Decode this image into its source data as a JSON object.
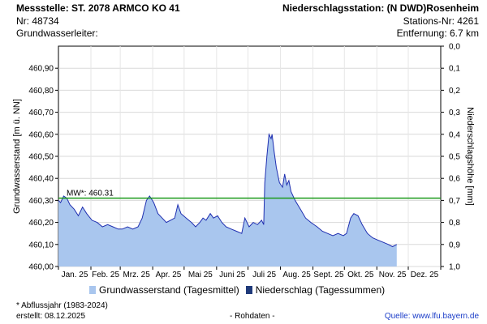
{
  "header": {
    "station_label": "Messstelle: ST. 2078 ARMCO KO 41",
    "nr": "Nr: 48734",
    "aquifer": "Grundwasserleiter:",
    "precip_station": "Niederschlagsstation: (N DWD)Rosenheim",
    "precip_nr": "Stations-Nr: 4261",
    "distance": "Entfernung: 6.7 km"
  },
  "legend": {
    "gw_label": "Grundwasserstand (Tagesmittel)",
    "precip_label": "Niederschlag (Tagessummen)"
  },
  "footer": {
    "abfluss": "* Abflussjahr (1983-2024)",
    "created": "erstellt:  08.12.2025",
    "rohdaten": "- Rohdaten -",
    "source": "Quelle:  www.lfu.bayern.de"
  },
  "colors": {
    "area_fill": "#a9c6ee",
    "line": "#1f2fb0",
    "mean_line": "#1a9a1a",
    "precip": "#1f3a7a",
    "link": "#1a3cc8"
  },
  "chart_data": {
    "type": "area",
    "xlabel": "",
    "ylabel": "Grundwasserstand [m ü. NN]",
    "y2label": "Niederschlagshöhe [mm]",
    "ylim": [
      460.0,
      461.0
    ],
    "y2lim": [
      0.0,
      1.0
    ],
    "y_ticks": [
      "460,00",
      "460,10",
      "460,20",
      "460,30",
      "460,40",
      "460,50",
      "460,60",
      "460,70",
      "460,80",
      "460,90"
    ],
    "y2_ticks": [
      "0,0",
      "0,1",
      "0,2",
      "0,3",
      "0,4",
      "0,5",
      "0,6",
      "0,7",
      "0,8",
      "0,9",
      "1,0"
    ],
    "x_ticks": [
      "Jan. 25",
      "Feb. 25",
      "Mrz. 25",
      "Apr. 25",
      "Mai 25",
      "Juni 25",
      "Juli 25",
      "Aug. 25",
      "Sept. 25",
      "Okt. 25",
      "Nov. 25",
      "Dez. 25"
    ],
    "x_range": [
      "2025-01-01",
      "2026-01-01"
    ],
    "mean_label": "MW*: 460.31",
    "mean_value": 460.31,
    "grid": true,
    "series": [
      {
        "name": "Grundwasserstand (Tagesmittel)",
        "points": [
          [
            "2025-01-01",
            460.3
          ],
          [
            "2025-01-03",
            460.29
          ],
          [
            "2025-01-06",
            460.32
          ],
          [
            "2025-01-09",
            460.31
          ],
          [
            "2025-01-12",
            460.28
          ],
          [
            "2025-01-16",
            460.26
          ],
          [
            "2025-01-20",
            460.23
          ],
          [
            "2025-01-24",
            460.27
          ],
          [
            "2025-01-28",
            460.24
          ],
          [
            "2025-02-02",
            460.21
          ],
          [
            "2025-02-07",
            460.2
          ],
          [
            "2025-02-12",
            460.18
          ],
          [
            "2025-02-17",
            460.19
          ],
          [
            "2025-02-22",
            460.18
          ],
          [
            "2025-02-27",
            460.17
          ],
          [
            "2025-03-03",
            460.17
          ],
          [
            "2025-03-08",
            460.18
          ],
          [
            "2025-03-13",
            460.17
          ],
          [
            "2025-03-18",
            460.18
          ],
          [
            "2025-03-22",
            460.22
          ],
          [
            "2025-03-26",
            460.3
          ],
          [
            "2025-03-29",
            460.32
          ],
          [
            "2025-04-02",
            460.29
          ],
          [
            "2025-04-06",
            460.24
          ],
          [
            "2025-04-10",
            460.22
          ],
          [
            "2025-04-14",
            460.2
          ],
          [
            "2025-04-18",
            460.21
          ],
          [
            "2025-04-22",
            460.22
          ],
          [
            "2025-04-25",
            460.28
          ],
          [
            "2025-04-28",
            460.24
          ],
          [
            "2025-05-03",
            460.22
          ],
          [
            "2025-05-08",
            460.2
          ],
          [
            "2025-05-12",
            460.18
          ],
          [
            "2025-05-16",
            460.2
          ],
          [
            "2025-05-19",
            460.22
          ],
          [
            "2025-05-22",
            460.21
          ],
          [
            "2025-05-26",
            460.24
          ],
          [
            "2025-05-29",
            460.22
          ],
          [
            "2025-06-02",
            460.23
          ],
          [
            "2025-06-06",
            460.2
          ],
          [
            "2025-06-10",
            460.18
          ],
          [
            "2025-06-15",
            460.17
          ],
          [
            "2025-06-20",
            460.16
          ],
          [
            "2025-06-25",
            460.15
          ],
          [
            "2025-06-28",
            460.22
          ],
          [
            "2025-07-02",
            460.18
          ],
          [
            "2025-07-06",
            460.2
          ],
          [
            "2025-07-10",
            460.19
          ],
          [
            "2025-07-14",
            460.21
          ],
          [
            "2025-07-16",
            460.19
          ],
          [
            "2025-07-17",
            460.38
          ],
          [
            "2025-07-19",
            460.5
          ],
          [
            "2025-07-21",
            460.6
          ],
          [
            "2025-07-23",
            460.58
          ],
          [
            "2025-07-24",
            460.6
          ],
          [
            "2025-07-26",
            460.52
          ],
          [
            "2025-07-28",
            460.45
          ],
          [
            "2025-07-31",
            460.38
          ],
          [
            "2025-08-03",
            460.36
          ],
          [
            "2025-08-05",
            460.42
          ],
          [
            "2025-08-07",
            460.37
          ],
          [
            "2025-08-09",
            460.39
          ],
          [
            "2025-08-11",
            460.34
          ],
          [
            "2025-08-15",
            460.3
          ],
          [
            "2025-08-20",
            460.26
          ],
          [
            "2025-08-25",
            460.22
          ],
          [
            "2025-08-30",
            460.2
          ],
          [
            "2025-09-05",
            460.18
          ],
          [
            "2025-09-10",
            460.16
          ],
          [
            "2025-09-15",
            460.15
          ],
          [
            "2025-09-20",
            460.14
          ],
          [
            "2025-09-25",
            460.15
          ],
          [
            "2025-09-30",
            460.14
          ],
          [
            "2025-10-03",
            460.15
          ],
          [
            "2025-10-07",
            460.22
          ],
          [
            "2025-10-10",
            460.24
          ],
          [
            "2025-10-14",
            460.23
          ],
          [
            "2025-10-18",
            460.19
          ],
          [
            "2025-10-23",
            460.15
          ],
          [
            "2025-10-28",
            460.13
          ],
          [
            "2025-11-02",
            460.12
          ],
          [
            "2025-11-07",
            460.11
          ],
          [
            "2025-11-12",
            460.1
          ],
          [
            "2025-11-16",
            460.09
          ],
          [
            "2025-11-20",
            460.1
          ]
        ]
      },
      {
        "name": "Niederschlag (Tagessummen)",
        "points": []
      }
    ]
  }
}
